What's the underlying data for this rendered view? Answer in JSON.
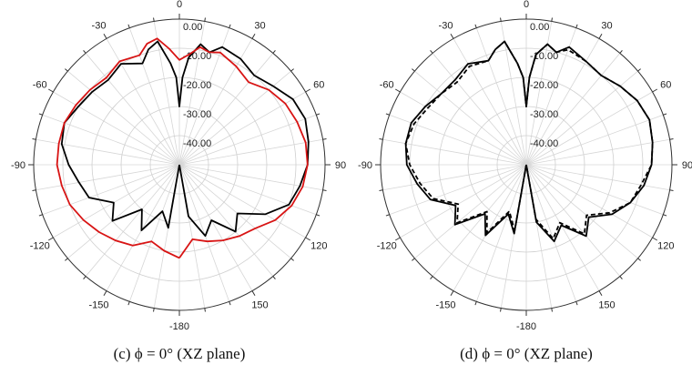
{
  "chart_data": [
    {
      "type": "polar-line",
      "caption": "(c) ϕ = 0° (XZ plane)",
      "angle_ticks": [
        "0",
        "30",
        "60",
        "90",
        "120",
        "150",
        "-180",
        "-150",
        "-120",
        "-90",
        "-60",
        "-30"
      ],
      "radial_ticks": [
        "0.00",
        "-10.00",
        "-20.00",
        "-30.00",
        "-40.00"
      ],
      "rlim": [
        -50,
        0
      ],
      "grid": true,
      "series": [
        {
          "color": "#000000",
          "dash": "solid",
          "angles": [
            -180,
            -170,
            -160,
            -150,
            -140,
            -130,
            -120,
            -110,
            -100,
            -90,
            -80,
            -70,
            -60,
            -50,
            -40,
            -30,
            -20,
            -15,
            -10,
            -5,
            -2,
            0,
            2,
            5,
            10,
            15,
            20,
            30,
            40,
            50,
            60,
            70,
            80,
            90,
            100,
            110,
            120,
            130,
            140,
            150,
            160,
            170,
            180
          ],
          "values": [
            -50,
            -28,
            -33,
            -24,
            -30,
            -20,
            -24,
            -17,
            -15,
            -12,
            -9,
            -8,
            -10,
            -11,
            -12,
            -10,
            -13,
            -9,
            -7,
            -15,
            -20,
            -30,
            -20,
            -13,
            -8,
            -10,
            -7,
            -8,
            -10,
            -8,
            -5,
            -4,
            -5,
            -6,
            -8,
            -10,
            -16,
            -24,
            -20,
            -28,
            -24,
            -32,
            -50
          ]
        },
        {
          "color": "#d81414",
          "dash": "solid",
          "angles": [
            -180,
            -170,
            -160,
            -150,
            -140,
            -130,
            -120,
            -110,
            -100,
            -90,
            -80,
            -70,
            -60,
            -50,
            -40,
            -30,
            -20,
            -15,
            -10,
            -5,
            0,
            5,
            10,
            15,
            20,
            30,
            40,
            50,
            60,
            70,
            80,
            90,
            100,
            110,
            120,
            130,
            140,
            150,
            160,
            170,
            180
          ],
          "values": [
            -18,
            -20,
            -22,
            -18,
            -16,
            -14,
            -12,
            -10,
            -9,
            -8,
            -8,
            -8,
            -9,
            -10,
            -11,
            -9,
            -10,
            -7,
            -6,
            -10,
            -14,
            -12,
            -9,
            -10,
            -9,
            -11,
            -13,
            -10,
            -8,
            -7,
            -6,
            -6,
            -7,
            -9,
            -12,
            -16,
            -18,
            -20,
            -22,
            -24,
            -18
          ]
        }
      ]
    },
    {
      "type": "polar-line",
      "caption": "(d) ϕ = 0° (XZ plane)",
      "angle_ticks": [
        "0",
        "30",
        "60",
        "90",
        "120",
        "150",
        "-180",
        "-150",
        "-120",
        "-90",
        "-60",
        "-30"
      ],
      "radial_ticks": [
        "0.00",
        "-10.00",
        "-20.00",
        "-30.00",
        "-40.00"
      ],
      "rlim": [
        -50,
        0
      ],
      "grid": true,
      "series": [
        {
          "color": "#000000",
          "dash": "solid",
          "angles": [
            -180,
            -170,
            -160,
            -150,
            -140,
            -130,
            -120,
            -110,
            -100,
            -90,
            -80,
            -70,
            -60,
            -50,
            -40,
            -30,
            -20,
            -15,
            -10,
            -5,
            -2,
            0,
            2,
            5,
            10,
            15,
            20,
            30,
            40,
            50,
            60,
            70,
            80,
            90,
            100,
            110,
            120,
            130,
            140,
            150,
            160,
            170,
            180
          ],
          "values": [
            -50,
            -26,
            -32,
            -22,
            -28,
            -18,
            -22,
            -15,
            -12,
            -9,
            -8,
            -8,
            -10,
            -12,
            -12,
            -10,
            -12,
            -9,
            -7,
            -15,
            -20,
            -30,
            -20,
            -12,
            -8,
            -10,
            -7,
            -9,
            -10,
            -8,
            -6,
            -5,
            -6,
            -7,
            -9,
            -12,
            -16,
            -22,
            -18,
            -26,
            -22,
            -30,
            -50
          ]
        },
        {
          "color": "#000000",
          "dash": "dashed",
          "angles": [
            -180,
            -170,
            -160,
            -150,
            -140,
            -130,
            -120,
            -110,
            -100,
            -90,
            -80,
            -70,
            -60,
            -50,
            -40,
            -30,
            -20,
            -15,
            -10,
            -5,
            -2,
            0,
            2,
            5,
            10,
            15,
            20,
            30,
            40,
            50,
            60,
            70,
            80,
            90,
            100,
            110,
            120,
            130,
            140,
            150,
            160,
            170,
            180
          ],
          "values": [
            -50,
            -27,
            -33,
            -23,
            -29,
            -19,
            -23,
            -16,
            -13,
            -10,
            -8,
            -9,
            -11,
            -12,
            -13,
            -11,
            -12,
            -9,
            -7,
            -15,
            -20,
            -30,
            -20,
            -12,
            -8,
            -10,
            -8,
            -9,
            -10,
            -8,
            -6,
            -5,
            -6,
            -7,
            -10,
            -12,
            -17,
            -23,
            -19,
            -27,
            -23,
            -31,
            -50
          ]
        }
      ]
    }
  ]
}
